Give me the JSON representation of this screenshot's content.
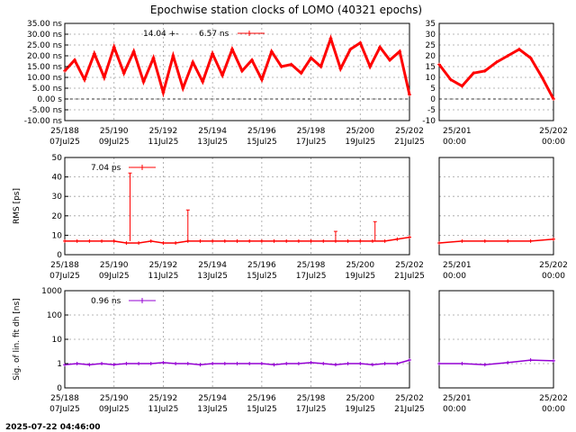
{
  "title": "Epochwise station clocks of LOMO (40321 epochs)",
  "timestamp": "2025-07-22 04:46:00",
  "colors": {
    "clock": "#ff0000",
    "rms": "#ff0000",
    "sig": "#9400d3",
    "grid": "#a0a0a0"
  },
  "chart_data": [
    {
      "type": "line",
      "panel": "clock",
      "ylabel": "",
      "unit": "ns",
      "ylim": [
        -10,
        35
      ],
      "yticks": [
        -10,
        -5,
        0,
        5,
        10,
        15,
        20,
        25,
        30,
        35
      ],
      "yticklabels_main": [
        "-10.00 ns",
        "-5.00 ns",
        "0.00 s",
        "5.00 ns",
        "10.00 ns",
        "15.00 ns",
        "20.00 ns",
        "25.00 ns",
        "30.00 ns",
        "35.00 ns"
      ],
      "yticklabels_zoom": [
        "-10",
        "-5",
        "0",
        "5",
        "10",
        "15",
        "20",
        "25",
        "30",
        "35"
      ],
      "legend": {
        "label": "14.04 +-     6.57 ns",
        "placement": "top-left"
      },
      "series": [
        {
          "part": "main",
          "x": [
            188.0,
            188.4,
            188.8,
            189.2,
            189.6,
            190.0,
            190.4,
            190.8,
            191.2,
            191.6,
            192.0,
            192.4,
            192.8,
            193.2,
            193.6,
            194.0,
            194.4,
            194.8,
            195.2,
            195.6,
            196.0,
            196.4,
            196.8,
            197.2,
            197.6,
            198.0,
            198.4,
            198.8,
            199.2,
            199.6,
            200.0,
            200.4,
            200.8,
            201.2,
            201.6,
            202.0
          ],
          "y": [
            13,
            18,
            9,
            21,
            10,
            24,
            12,
            22,
            8,
            19,
            3,
            20,
            5,
            17,
            8,
            21,
            11,
            23,
            13,
            18,
            9,
            22,
            15,
            16,
            12,
            19,
            15,
            28,
            14,
            23,
            26,
            15,
            24,
            18,
            22,
            2
          ]
        },
        {
          "part": "zoom",
          "x": [
            201.0,
            201.1,
            201.2,
            201.3,
            201.4,
            201.5,
            201.6,
            201.7,
            201.8,
            201.9,
            202.0
          ],
          "y": [
            16,
            9,
            6,
            12,
            13,
            17,
            20,
            23,
            19,
            10,
            0
          ]
        }
      ]
    },
    {
      "type": "line",
      "panel": "rms",
      "ylabel": "RMS [ps]",
      "ylim": [
        0,
        50
      ],
      "yticks": [
        0,
        10,
        20,
        30,
        40,
        50
      ],
      "yticklabels_main": [
        "0",
        "10",
        "20",
        "30",
        "40",
        "50"
      ],
      "yticklabels_zoom": [],
      "legend": {
        "label": "7.04 ps",
        "placement": "top-left"
      },
      "series": [
        {
          "part": "main",
          "x": [
            188.0,
            188.5,
            189.0,
            189.5,
            190.0,
            190.5,
            191.0,
            191.5,
            192.0,
            192.5,
            193.0,
            193.5,
            194.0,
            194.5,
            195.0,
            195.5,
            196.0,
            196.5,
            197.0,
            197.5,
            198.0,
            198.5,
            199.0,
            199.5,
            200.0,
            200.5,
            201.0,
            201.5,
            202.0
          ],
          "y": [
            7,
            7,
            7,
            7,
            7,
            6,
            6,
            7,
            6,
            6,
            7,
            7,
            7,
            7,
            7,
            7,
            7,
            7,
            7,
            7,
            7,
            7,
            7,
            7,
            7,
            7,
            7,
            8,
            9
          ]
        },
        {
          "part": "zoom",
          "x": [
            201.0,
            201.2,
            201.4,
            201.6,
            201.8,
            202.0
          ],
          "y": [
            6,
            7,
            7,
            7,
            7,
            8
          ]
        }
      ],
      "spikes": [
        {
          "x": 190.65,
          "y": 42
        },
        {
          "x": 193.0,
          "y": 23
        },
        {
          "x": 199.0,
          "y": 12
        },
        {
          "x": 200.6,
          "y": 17
        }
      ]
    },
    {
      "type": "line",
      "panel": "sig",
      "ylabel": "Sig. of lin. fit dh [ns]",
      "scale": "log",
      "ylim": [
        0.1,
        1000
      ],
      "yticks": [
        0.1,
        1,
        10,
        100,
        1000
      ],
      "yticklabels_main": [
        "0",
        "1",
        "10",
        "100",
        "1000"
      ],
      "yticklabels_zoom": [],
      "legend": {
        "label": "0.96 ns",
        "placement": "top-left"
      },
      "series": [
        {
          "part": "main",
          "x": [
            188.0,
            188.5,
            189.0,
            189.5,
            190.0,
            190.5,
            191.0,
            191.5,
            192.0,
            192.5,
            193.0,
            193.5,
            194.0,
            194.5,
            195.0,
            195.5,
            196.0,
            196.5,
            197.0,
            197.5,
            198.0,
            198.5,
            199.0,
            199.5,
            200.0,
            200.5,
            201.0,
            201.5,
            202.0
          ],
          "y": [
            0.9,
            1.0,
            0.9,
            1.0,
            0.9,
            1.0,
            1.0,
            1.0,
            1.1,
            1.0,
            1.0,
            0.9,
            1.0,
            1.0,
            1.0,
            1.0,
            1.0,
            0.9,
            1.0,
            1.0,
            1.1,
            1.0,
            0.9,
            1.0,
            1.0,
            0.9,
            1.0,
            1.0,
            1.4
          ]
        },
        {
          "part": "zoom",
          "x": [
            201.0,
            201.2,
            201.4,
            201.6,
            201.8,
            202.0
          ],
          "y": [
            1.0,
            1.0,
            0.9,
            1.1,
            1.4,
            1.3
          ]
        }
      ]
    }
  ],
  "xaxis_main": {
    "xlim": [
      188,
      202
    ],
    "ticks": [
      188,
      190,
      192,
      194,
      196,
      198,
      200,
      202
    ],
    "labels_top": [
      "25/188",
      "25/190",
      "25/192",
      "25/194",
      "25/196",
      "25/198",
      "25/200",
      "25/202"
    ],
    "labels_bottom": [
      "07Jul25",
      "09Jul25",
      "11Jul25",
      "13Jul25",
      "15Jul25",
      "17Jul25",
      "19Jul25",
      "21Jul25"
    ]
  },
  "xaxis_zoom": {
    "xlim": [
      201,
      202
    ],
    "ticks": [
      201,
      202
    ],
    "labels_top": [
      "25/201",
      "25/202"
    ],
    "labels_bottom": [
      "00:00",
      "00:00"
    ]
  }
}
